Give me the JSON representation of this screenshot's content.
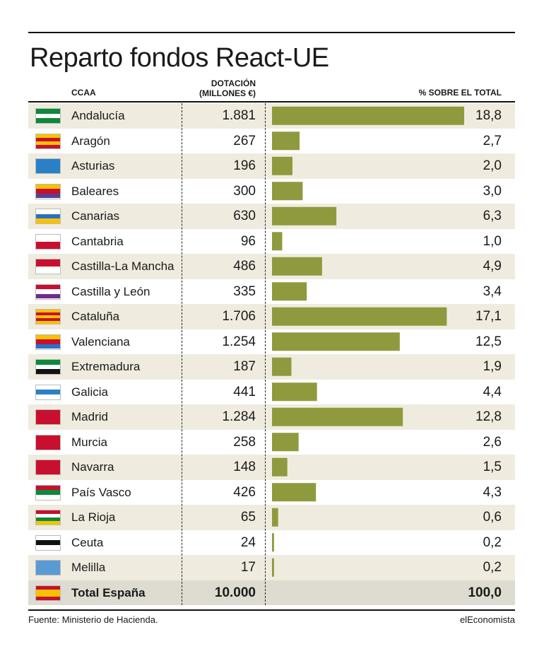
{
  "title": "Reparto fondos React-UE",
  "headers": {
    "ccaa": "CCAA",
    "dotacion_line1": "DOTACIÓN",
    "dotacion_line2": "(MILLONES €)",
    "pct": "% SOBRE EL TOTAL"
  },
  "footer": {
    "source": "Fuente: Ministerio de Hacienda.",
    "brand": "elEconomista"
  },
  "colors": {
    "bar": "#8f9a3e",
    "stripe": "#efecdf",
    "total_row": "#dedcd0"
  },
  "chart_data": {
    "type": "bar",
    "orientation": "horizontal",
    "categories": [
      "Andalucía",
      "Aragón",
      "Asturias",
      "Baleares",
      "Canarias",
      "Cantabria",
      "Castilla-La Mancha",
      "Castilla y León",
      "Cataluña",
      "Valenciana",
      "Extremadura",
      "Galicia",
      "Madrid",
      "Murcia",
      "Navarra",
      "País Vasco",
      "La Rioja",
      "Ceuta",
      "Melilla"
    ],
    "dotacion": [
      "1.881",
      "267",
      "196",
      "300",
      "630",
      "96",
      "486",
      "335",
      "1.706",
      "1.254",
      "187",
      "441",
      "1.284",
      "258",
      "148",
      "426",
      "65",
      "24",
      "17"
    ],
    "pct_labels": [
      "18,8",
      "2,7",
      "2,0",
      "3,0",
      "6,3",
      "1,0",
      "4,9",
      "3,4",
      "17,1",
      "12,5",
      "1,9",
      "4,4",
      "12,8",
      "2,6",
      "1,5",
      "4,3",
      "0,6",
      "0,2",
      "0,2"
    ],
    "values": [
      18.8,
      2.7,
      2.0,
      3.0,
      6.3,
      1.0,
      4.9,
      3.4,
      17.1,
      12.5,
      1.9,
      4.4,
      12.8,
      2.6,
      1.5,
      4.3,
      0.6,
      0.2,
      0.2
    ],
    "total": {
      "name": "Total España",
      "dotacion": "10.000",
      "pct": "100,0"
    }
  }
}
